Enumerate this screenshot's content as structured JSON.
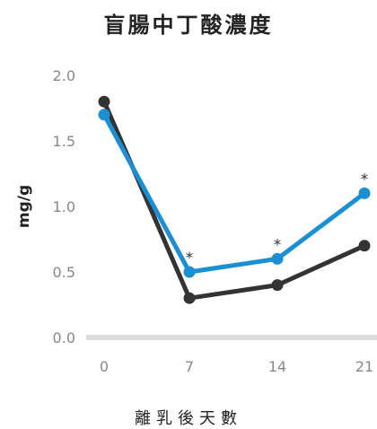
{
  "chart_data": {
    "type": "line",
    "title": "盲腸中丁酸濃度",
    "xlabel": "離乳後天數",
    "ylabel": "mg/g",
    "x": [
      0,
      7,
      14,
      21
    ],
    "x_ticks": [
      "0",
      "7",
      "14",
      "21"
    ],
    "y_ticks": [
      "0.0",
      "0.5",
      "1.0",
      "1.5",
      "2.0"
    ],
    "ylim": [
      0,
      2.0
    ],
    "grid": false,
    "series": [
      {
        "values": [
          1.8,
          0.3,
          0.4,
          0.7
        ],
        "color": "#333333"
      },
      {
        "values": [
          1.7,
          0.5,
          0.6,
          1.1
        ],
        "color": "#1b8fd4"
      }
    ],
    "annotations": [
      {
        "x": 7,
        "y": 0.5,
        "text": "*"
      },
      {
        "x": 14,
        "y": 0.6,
        "text": "*"
      },
      {
        "x": 21,
        "y": 1.1,
        "text": "*"
      }
    ]
  }
}
